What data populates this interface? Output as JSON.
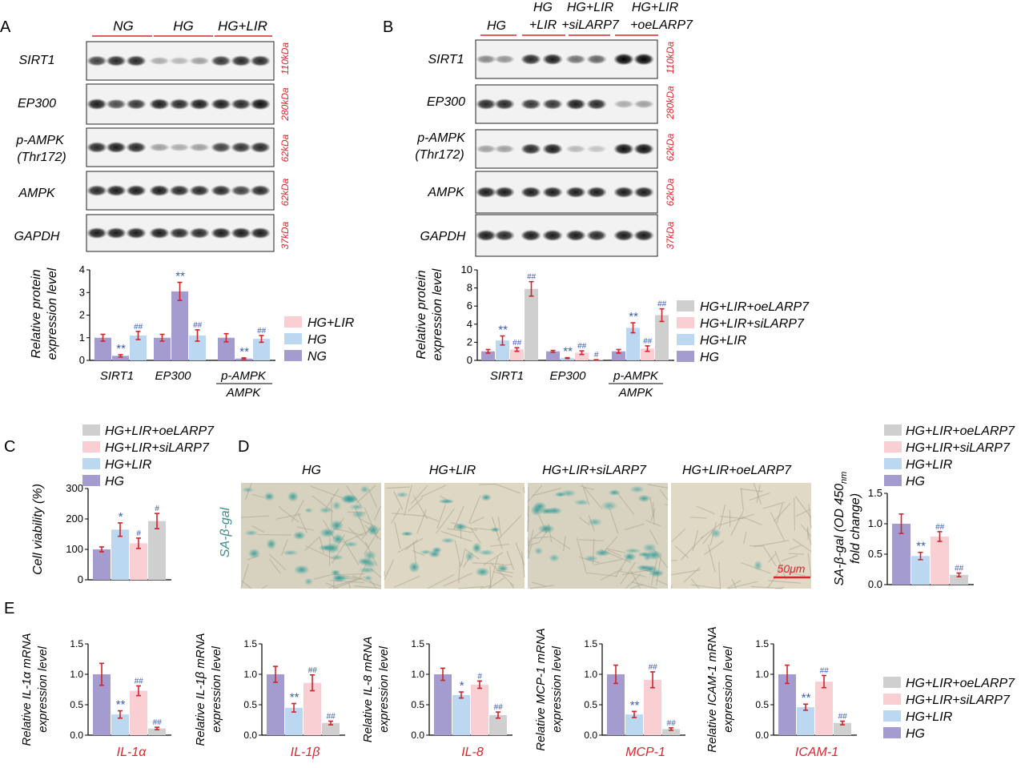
{
  "colors": {
    "NG": "#a49ccf",
    "HG": "#a49ccf",
    "HG+LIR": "#bcd8f0",
    "HG+LIR+siLARP7": "#f9cfd4",
    "HG+LIR+oeLARP7": "#cfcfcf",
    "error_bar": "#d0242c",
    "significance": "#3b5bab",
    "kda_label": "#d9252c",
    "group_line": "#d9252c",
    "cell_label": "#3a8c8c"
  },
  "panels": {
    "A": {
      "label": "A",
      "groups": [
        "NG",
        "HG",
        "HG+LIR"
      ],
      "proteins": [
        "SIRT1",
        "EP300",
        "p-AMPK",
        "(Thr172)",
        "AMPK",
        "GAPDH"
      ],
      "kda": [
        "110kDa",
        "280kDa",
        "62kDa",
        "62kDa",
        "37kDa"
      ],
      "ylabel_1": "Relative protein",
      "ylabel_2": "expression level",
      "legend": [
        "HG+LIR",
        "HG",
        "NG"
      ],
      "xlabels": [
        "SIRT1",
        "EP300",
        "p-AMPK",
        "AMPK"
      ]
    },
    "B": {
      "label": "B",
      "groups": [
        [
          "HG"
        ],
        [
          "HG",
          "+LIR"
        ],
        [
          "HG+LIR",
          "+siLARP7"
        ],
        [
          "HG+LIR",
          "+oeLARP7"
        ]
      ],
      "proteins": [
        "SIRT1",
        "EP300",
        "p-AMPK",
        "(Thr172)",
        "AMPK",
        "GAPDH"
      ],
      "kda": [
        "110kDa",
        "280kDa",
        "62kDa",
        "62kDa",
        "37kDa"
      ],
      "ylabel_1": "Relative protein",
      "ylabel_2": "expression level",
      "legend": [
        "HG+LIR+oeLARP7",
        "HG+LIR+siLARP7",
        "HG+LIR",
        "HG"
      ],
      "xlabels": [
        "SIRT1",
        "EP300",
        "p-AMPK",
        "AMPK"
      ]
    },
    "C": {
      "label": "C",
      "legend": [
        "HG+LIR+oeLARP7",
        "HG+LIR+siLARP7",
        "HG+LIR",
        "HG"
      ],
      "ylabel": "Cell viability (%)"
    },
    "D": {
      "label": "D",
      "image_titles": [
        "HG",
        "HG+LIR",
        "HG+LIR+siLARP7",
        "HG+LIR+oeLARP7"
      ],
      "stain_label": "SA-β-gal",
      "scale_bar": "50μm",
      "legend": [
        "HG+LIR+oeLARP7",
        "HG+LIR+siLARP7",
        "HG+LIR",
        "HG"
      ],
      "ylabel_1": "SA-β-gal (OD 450",
      "ylabel_sub": "nm",
      "ylabel_2": "fold change)"
    },
    "E": {
      "label": "E",
      "legend": [
        "HG+LIR+oeLARP7",
        "HG+LIR+siLARP7",
        "HG+LIR",
        "HG"
      ]
    }
  },
  "chart_data": [
    {
      "id": "A-bar",
      "type": "bar",
      "ylim": [
        0,
        4
      ],
      "yticks": [
        0,
        1,
        2,
        3,
        4
      ],
      "categories": [
        "SIRT1",
        "EP300",
        "p-AMPK/AMPK"
      ],
      "series": [
        {
          "name": "NG",
          "values": [
            1.0,
            1.0,
            1.0
          ],
          "errors": [
            0.15,
            0.15,
            0.18
          ]
        },
        {
          "name": "HG",
          "values": [
            0.2,
            3.05,
            0.08
          ],
          "errors": [
            0.05,
            0.4,
            0.03
          ]
        },
        {
          "name": "HG+LIR",
          "values": [
            1.1,
            1.1,
            0.95
          ],
          "errors": [
            0.18,
            0.25,
            0.15
          ]
        }
      ],
      "annotations": [
        {
          "cat": 0,
          "series": 1,
          "text": "**"
        },
        {
          "cat": 0,
          "series": 2,
          "text": "##"
        },
        {
          "cat": 1,
          "series": 1,
          "text": "**"
        },
        {
          "cat": 1,
          "series": 2,
          "text": "##"
        },
        {
          "cat": 2,
          "series": 1,
          "text": "**"
        },
        {
          "cat": 2,
          "series": 2,
          "text": "##"
        }
      ]
    },
    {
      "id": "B-bar",
      "type": "bar",
      "ylim": [
        0,
        10
      ],
      "yticks": [
        0,
        2,
        4,
        6,
        8,
        10
      ],
      "categories": [
        "SIRT1",
        "EP300",
        "p-AMPK/AMPK"
      ],
      "series": [
        {
          "name": "HG",
          "values": [
            1.0,
            1.0,
            1.0
          ],
          "errors": [
            0.2,
            0.1,
            0.2
          ]
        },
        {
          "name": "HG+LIR",
          "values": [
            2.2,
            0.25,
            3.6
          ],
          "errors": [
            0.5,
            0.05,
            0.55
          ]
        },
        {
          "name": "HG+LIR+siLARP7",
          "values": [
            1.2,
            0.85,
            1.3
          ],
          "errors": [
            0.2,
            0.2,
            0.3
          ]
        },
        {
          "name": "HG+LIR+oeLARP7",
          "values": [
            7.9,
            0.05,
            5.0
          ],
          "errors": [
            0.8,
            0.02,
            0.7
          ]
        }
      ],
      "annotations": [
        {
          "cat": 0,
          "series": 1,
          "text": "**"
        },
        {
          "cat": 0,
          "series": 2,
          "text": "##"
        },
        {
          "cat": 0,
          "series": 3,
          "text": "##"
        },
        {
          "cat": 1,
          "series": 1,
          "text": "**"
        },
        {
          "cat": 1,
          "series": 2,
          "text": "##"
        },
        {
          "cat": 1,
          "series": 3,
          "text": "#"
        },
        {
          "cat": 2,
          "series": 1,
          "text": "**"
        },
        {
          "cat": 2,
          "series": 2,
          "text": "##"
        },
        {
          "cat": 2,
          "series": 3,
          "text": "##"
        }
      ]
    },
    {
      "id": "C-bar",
      "type": "bar",
      "ylim": [
        0,
        300
      ],
      "yticks": [
        0,
        100,
        200,
        300
      ],
      "categories": [
        "HG",
        "HG+LIR",
        "HG+LIR+siLARP7",
        "HG+LIR+oeLARP7"
      ],
      "values": [
        100,
        165,
        120,
        193
      ],
      "errors": [
        8,
        22,
        17,
        25
      ],
      "annotations": [
        "",
        "*",
        "#",
        "#"
      ]
    },
    {
      "id": "D-bar",
      "type": "bar",
      "ylim": [
        0,
        1.5
      ],
      "yticks": [
        "0.0",
        "0.5",
        "1.0",
        "1.5"
      ],
      "categories": [
        "HG",
        "HG+LIR",
        "HG+LIR+siLARP7",
        "HG+LIR+oeLARP7"
      ],
      "values": [
        1.0,
        0.47,
        0.79,
        0.16
      ],
      "errors": [
        0.16,
        0.06,
        0.08,
        0.03
      ],
      "annotations": [
        "",
        "**",
        "##",
        "##"
      ]
    },
    {
      "id": "E-IL1a",
      "type": "bar",
      "xlabel": "IL-1α",
      "ylabel_1": "Relative IL-1α mRNA",
      "ylabel_2": "expression level",
      "ylim": [
        0,
        1.5
      ],
      "yticks": [
        "0.0",
        "0.5",
        "1.0",
        "1.5"
      ],
      "categories": [
        "HG",
        "HG+LIR",
        "HG+LIR+siLARP7",
        "HG+LIR+oeLARP7"
      ],
      "values": [
        1.0,
        0.34,
        0.73,
        0.11
      ],
      "errors": [
        0.18,
        0.06,
        0.08,
        0.02
      ],
      "annotations": [
        "",
        "**",
        "##",
        "##"
      ]
    },
    {
      "id": "E-IL1b",
      "type": "bar",
      "xlabel": "IL-1β",
      "ylabel_1": "Relative IL-1β mRNA",
      "ylabel_2": "expression level",
      "ylim": [
        0,
        1.5
      ],
      "yticks": [
        "0.0",
        "0.5",
        "1.0",
        "1.5"
      ],
      "categories": [
        "HG",
        "HG+LIR",
        "HG+LIR+siLARP7",
        "HG+LIR+oeLARP7"
      ],
      "values": [
        1.0,
        0.45,
        0.86,
        0.2
      ],
      "errors": [
        0.13,
        0.07,
        0.13,
        0.03
      ],
      "annotations": [
        "",
        "**",
        "##",
        "##"
      ]
    },
    {
      "id": "E-IL8",
      "type": "bar",
      "xlabel": "IL-8",
      "ylabel_1": "Relative IL-8 mRNA",
      "ylabel_2": "expression level",
      "ylim": [
        0,
        1.5
      ],
      "yticks": [
        "0.0",
        "0.5",
        "1.0",
        "1.5"
      ],
      "categories": [
        "HG",
        "HG+LIR",
        "HG+LIR+siLARP7",
        "HG+LIR+oeLARP7"
      ],
      "values": [
        1.0,
        0.66,
        0.83,
        0.33
      ],
      "errors": [
        0.1,
        0.05,
        0.06,
        0.05
      ],
      "annotations": [
        "",
        "*",
        "#",
        "##"
      ]
    },
    {
      "id": "E-MCP1",
      "type": "bar",
      "xlabel": "MCP-1",
      "ylabel_1": "Relative MCP-1 mRNA",
      "ylabel_2": "expression level",
      "ylim": [
        0,
        1.5
      ],
      "yticks": [
        "0.0",
        "0.5",
        "1.0",
        "1.5"
      ],
      "categories": [
        "HG",
        "HG+LIR",
        "HG+LIR+siLARP7",
        "HG+LIR+oeLARP7"
      ],
      "values": [
        1.0,
        0.34,
        0.91,
        0.1
      ],
      "errors": [
        0.15,
        0.05,
        0.13,
        0.02
      ],
      "annotations": [
        "",
        "**",
        "##",
        "##"
      ]
    },
    {
      "id": "E-ICAM1",
      "type": "bar",
      "xlabel": "ICAM-1",
      "ylabel_1": "Relative ICAM-1 mRNA",
      "ylabel_2": "expression level",
      "ylim": [
        0,
        1.5
      ],
      "yticks": [
        "0.0",
        "0.5",
        "1.0",
        "1.5"
      ],
      "categories": [
        "HG",
        "HG+LIR",
        "HG+LIR+siLARP7",
        "HG+LIR+oeLARP7"
      ],
      "values": [
        1.0,
        0.46,
        0.88,
        0.2
      ],
      "errors": [
        0.15,
        0.05,
        0.1,
        0.03
      ],
      "annotations": [
        "",
        "**",
        "##",
        "##"
      ]
    }
  ]
}
